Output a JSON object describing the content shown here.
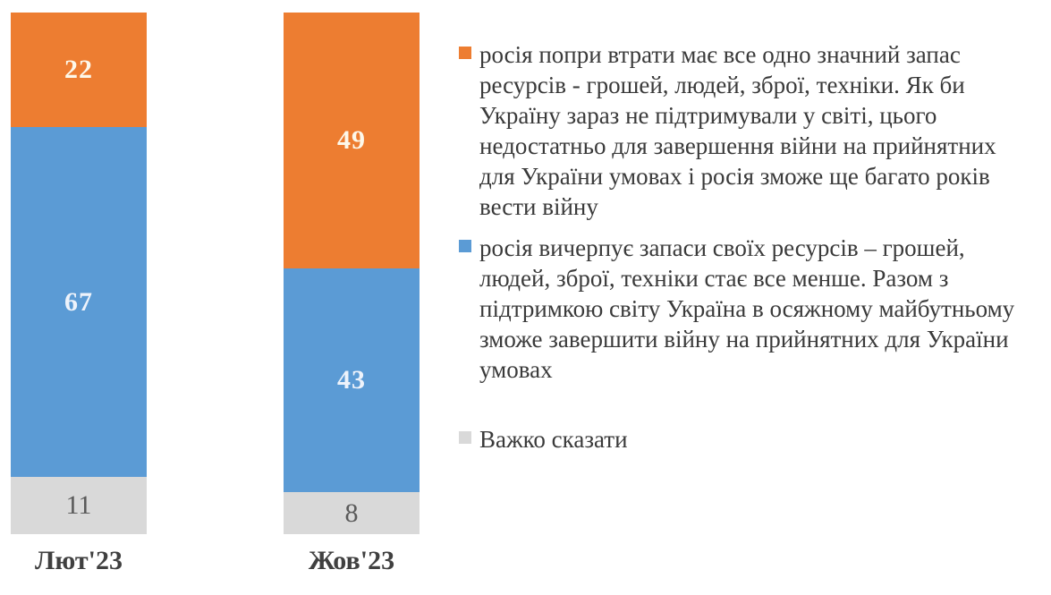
{
  "chart_data": {
    "type": "bar",
    "subtype": "stacked-percent-column",
    "title": "",
    "xlabel": "",
    "ylabel": "",
    "ylim": [
      0,
      100
    ],
    "grid": false,
    "legend_position": "right",
    "categories": [
      "Лют'23",
      "Жов'23"
    ],
    "series": [
      {
        "name": "росія попри втрати має все одно значний запас ресурсів - грошей, людей, зброї, техніки. Як би Україну зараз не підтримували у світі, цього недостатньо для завершення війни на прийнятних для України умовах і росія зможе ще багато років вести війну",
        "color": "#ED7D31",
        "values": [
          22,
          49
        ]
      },
      {
        "name": "росія вичерпує запаси своїх ресурсів – грошей, людей, зброї, техніки стає все менше. Разом з підтримкою світу Україна в осяжному майбутньому зможе завершити війну на прийнятних для України умовах",
        "color": "#5B9BD5",
        "values": [
          67,
          43
        ]
      },
      {
        "name": "Важко сказати",
        "color": "#D9D9D9",
        "values": [
          11,
          8
        ]
      }
    ]
  },
  "colors": {
    "background": "#FFFFFF",
    "bar_value_light": "#FDF8EA",
    "bar_value_dark": "#595959",
    "category_label": "#404040",
    "legend_text": "#3A3A3A"
  }
}
